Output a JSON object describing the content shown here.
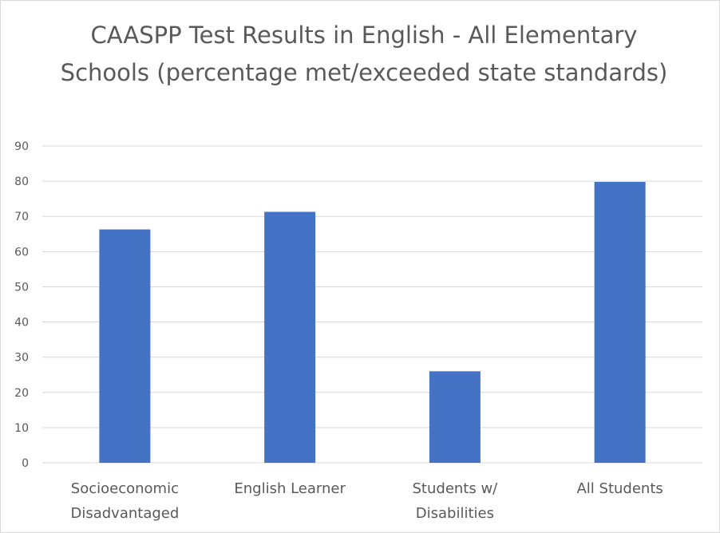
{
  "chart_data": {
    "type": "bar",
    "title": "CAASPP Test Results in English - All Elementary Schools (percentage met/exceeded state standards)",
    "categories": [
      [
        "Socioeconomic",
        "Disadvantaged"
      ],
      [
        "English Learner"
      ],
      [
        "Students w/",
        "Disabilities"
      ],
      [
        "All Students"
      ]
    ],
    "values": [
      66.3,
      71.3,
      26,
      79.8
    ],
    "ylim": [
      0,
      90
    ],
    "yticks": [
      0,
      10,
      20,
      30,
      40,
      50,
      60,
      70,
      80,
      90
    ],
    "xlabel": "",
    "ylabel": "",
    "grid": true,
    "legend": "none",
    "colors": {
      "bar": "#4472C4",
      "grid": "#d9d9d9",
      "text": "#595959"
    }
  }
}
